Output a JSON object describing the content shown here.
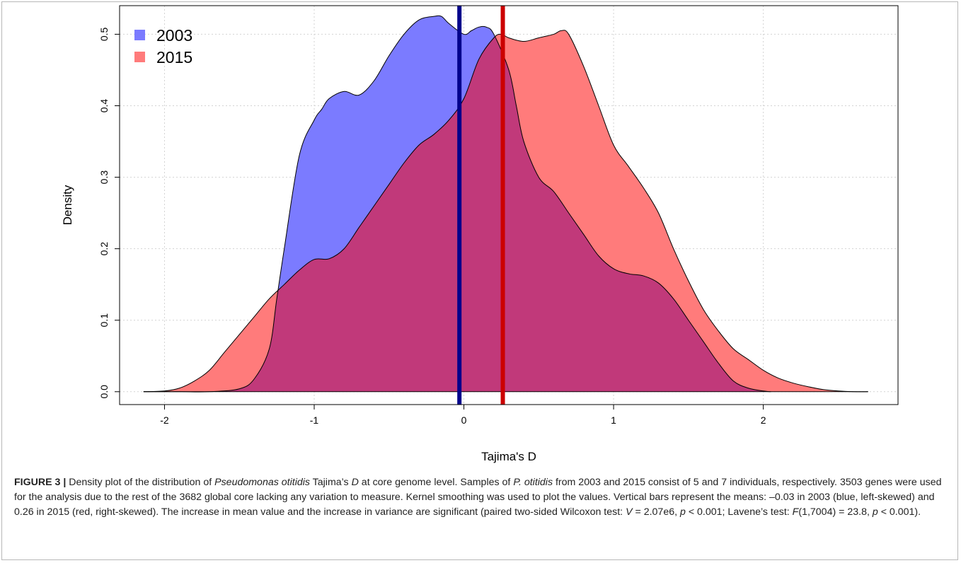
{
  "chart_data": {
    "type": "area",
    "title": "",
    "xlabel": "Tajima's D",
    "ylabel": "Density",
    "xlim": [
      -2.3,
      2.9
    ],
    "ylim": [
      -0.018,
      0.54
    ],
    "x_ticks": [
      "-2",
      "-1",
      "0",
      "1",
      "2"
    ],
    "x_tick_values": [
      -2,
      -1,
      0,
      1,
      2
    ],
    "y_ticks": [
      "0.0",
      "0.1",
      "0.2",
      "0.3",
      "0.4",
      "0.5"
    ],
    "y_tick_values": [
      0,
      0.1,
      0.2,
      0.3,
      0.4,
      0.5
    ],
    "grid": true,
    "legend_position": "top-left",
    "series": [
      {
        "name": "2003",
        "fill_color": "#7b7bff",
        "mean": -0.03,
        "mean_color": "#00008b",
        "x": [
          -2.14,
          -1.9,
          -1.7,
          -1.5,
          -1.4,
          -1.3,
          -1.25,
          -1.2,
          -1.1,
          -1.0,
          -0.95,
          -0.9,
          -0.8,
          -0.7,
          -0.6,
          -0.5,
          -0.4,
          -0.3,
          -0.2,
          -0.15,
          -0.1,
          0.0,
          0.05,
          0.1,
          0.15,
          0.2,
          0.3,
          0.35,
          0.4,
          0.5,
          0.6,
          0.7,
          0.8,
          0.9,
          1.0,
          1.1,
          1.2,
          1.3,
          1.4,
          1.5,
          1.6,
          1.7,
          1.8,
          1.9,
          2.0,
          2.05
        ],
        "y": [
          0.0,
          0.0,
          0.0,
          0.004,
          0.018,
          0.06,
          0.13,
          0.2,
          0.33,
          0.38,
          0.395,
          0.41,
          0.42,
          0.415,
          0.435,
          0.47,
          0.5,
          0.52,
          0.525,
          0.525,
          0.515,
          0.5,
          0.505,
          0.51,
          0.51,
          0.5,
          0.45,
          0.4,
          0.35,
          0.3,
          0.28,
          0.25,
          0.22,
          0.19,
          0.172,
          0.165,
          0.162,
          0.152,
          0.13,
          0.1,
          0.07,
          0.04,
          0.015,
          0.005,
          0.001,
          0.0
        ]
      },
      {
        "name": "2015",
        "fill_color": "#ff7b7b",
        "mean": 0.26,
        "mean_color": "#cc0000",
        "x": [
          -2.14,
          -2.0,
          -1.9,
          -1.8,
          -1.7,
          -1.6,
          -1.5,
          -1.4,
          -1.3,
          -1.2,
          -1.1,
          -1.0,
          -0.9,
          -0.8,
          -0.7,
          -0.6,
          -0.5,
          -0.4,
          -0.3,
          -0.2,
          -0.1,
          0.0,
          0.1,
          0.2,
          0.25,
          0.3,
          0.4,
          0.5,
          0.6,
          0.65,
          0.7,
          0.8,
          0.9,
          1.0,
          1.1,
          1.2,
          1.3,
          1.4,
          1.5,
          1.6,
          1.7,
          1.8,
          1.9,
          2.0,
          2.1,
          2.2,
          2.3,
          2.4,
          2.5,
          2.6,
          2.7
        ],
        "y": [
          0.0,
          0.001,
          0.005,
          0.015,
          0.03,
          0.055,
          0.08,
          0.105,
          0.13,
          0.15,
          0.17,
          0.185,
          0.186,
          0.2,
          0.23,
          0.26,
          0.29,
          0.32,
          0.345,
          0.36,
          0.38,
          0.41,
          0.465,
          0.495,
          0.5,
          0.495,
          0.49,
          0.495,
          0.5,
          0.505,
          0.5,
          0.455,
          0.4,
          0.345,
          0.315,
          0.285,
          0.25,
          0.2,
          0.155,
          0.115,
          0.085,
          0.06,
          0.045,
          0.03,
          0.019,
          0.012,
          0.007,
          0.003,
          0.001,
          0.0,
          0.0
        ]
      }
    ],
    "overlap_color": "#c1397a"
  },
  "caption": {
    "figure_label": "FIGURE 3 |",
    "p1": " Density plot of the distribution of ",
    "p2_italic": "Pseudomonas otitidis",
    "p3": " Tajima’s ",
    "p4_italic": "D",
    "p5": " at core genome level. Samples of ",
    "p6_italic": "P. otitidis",
    "p7": " from 2003 and 2015 consist of 5 and 7 individuals, respectively. 3503 genes were used for the analysis due to the rest of the 3682 global core lacking any variation to measure. Kernel smoothing was used to plot the values. Vertical bars represent the means: –0.03 in 2003 (blue, left-skewed) and 0.26 in 2015 (red, right-skewed). The increase in mean value and the increase in variance are significant (paired two-sided Wilcoxon test: ",
    "p8_italic": "V",
    "p9": " = 2.07e6, ",
    "p10_italic": "p",
    "p11": " < 0.001; Lavene’s test: ",
    "p12_italic": "F",
    "p13": "(1,7004) = 23.8, ",
    "p14_italic": "p",
    "p15": " < 0.001)."
  }
}
